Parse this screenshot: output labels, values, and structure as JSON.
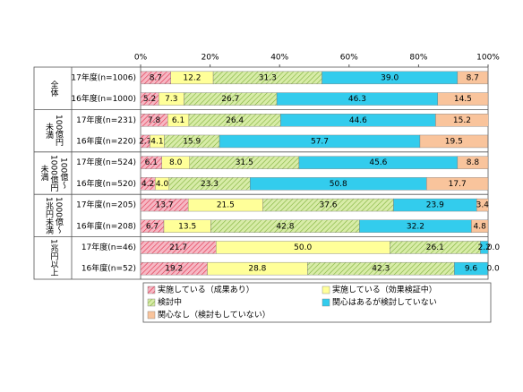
{
  "chart_data": {
    "type": "stacked-barh",
    "groups": [
      "全体",
      "100億円未満",
      "100億～1000億円未満",
      "1000億～1兆円未満",
      "1兆円以上"
    ],
    "categories": [
      "17年度(n=1006)",
      "16年度(n=1000)",
      "17年度(n=231)",
      "16年度(n=220)",
      "17年度(n=524)",
      "16年度(n=520)",
      "17年度(n=205)",
      "16年度(n=208)",
      "17年度(n=46)",
      "16年度(n=52)"
    ],
    "series": [
      {
        "name": "実施している（成果あり）",
        "color": "#f6b8c4",
        "hatch": "#e0304a",
        "values": [
          8.7,
          5.2,
          7.8,
          2.7,
          6.1,
          4.2,
          13.7,
          6.7,
          21.7,
          19.2
        ],
        "value_labels": [
          "8.7",
          "5.2",
          "7.8",
          "2.7",
          "6.1",
          "4.2",
          "13.7",
          "6.7",
          "21.7",
          "19.2"
        ]
      },
      {
        "name": "実施している（効果検証中）",
        "color": "#ffff99",
        "values": [
          12.2,
          7.3,
          6.1,
          4.1,
          8.0,
          4.0,
          21.5,
          13.5,
          50.0,
          28.8
        ],
        "value_labels": [
          "12.2",
          "7.3",
          "6.1",
          "4.1",
          "8.0",
          "4.0",
          "21.5",
          "13.5",
          "50.0",
          "28.8"
        ]
      },
      {
        "name": "検討中",
        "color": "#d8eca8",
        "hatch": "#7fb23a",
        "values": [
          31.3,
          26.7,
          26.4,
          15.9,
          31.5,
          23.3,
          37.6,
          42.8,
          26.1,
          42.3
        ],
        "value_labels": [
          "31.3",
          "26.7",
          "26.4",
          "15.9",
          "31.5",
          "23.3",
          "37.6",
          "42.8",
          "26.1",
          "42.3"
        ]
      },
      {
        "name": "関心はあるが検討していない",
        "color": "#33cced",
        "values": [
          39.0,
          46.3,
          44.6,
          57.7,
          45.6,
          50.8,
          23.9,
          32.2,
          2.2,
          9.6
        ],
        "value_labels": [
          "39.0",
          "46.3",
          "44.6",
          "57.7",
          "45.6",
          "50.8",
          "23.9",
          "32.2",
          "2.2",
          "9.6"
        ]
      },
      {
        "name": "関心なし（検討もしていない）",
        "color": "#f9c49c",
        "values": [
          8.7,
          14.5,
          15.2,
          19.5,
          8.8,
          17.7,
          3.4,
          4.8,
          0.0,
          0.0
        ],
        "value_labels": [
          "8.7",
          "14.5",
          "15.2",
          "19.5",
          "8.8",
          "17.7",
          "3.4",
          "4.8",
          "0.0",
          "0.0"
        ]
      }
    ],
    "xlim": [
      0,
      100
    ],
    "xticks": [
      {
        "value": 0,
        "label": "0%"
      },
      {
        "value": 20,
        "label": "20%"
      },
      {
        "value": 40,
        "label": "40%"
      },
      {
        "value": 60,
        "label": "60%"
      },
      {
        "value": 80,
        "label": "80%"
      },
      {
        "value": 100,
        "label": "100%"
      }
    ],
    "grid": false
  }
}
